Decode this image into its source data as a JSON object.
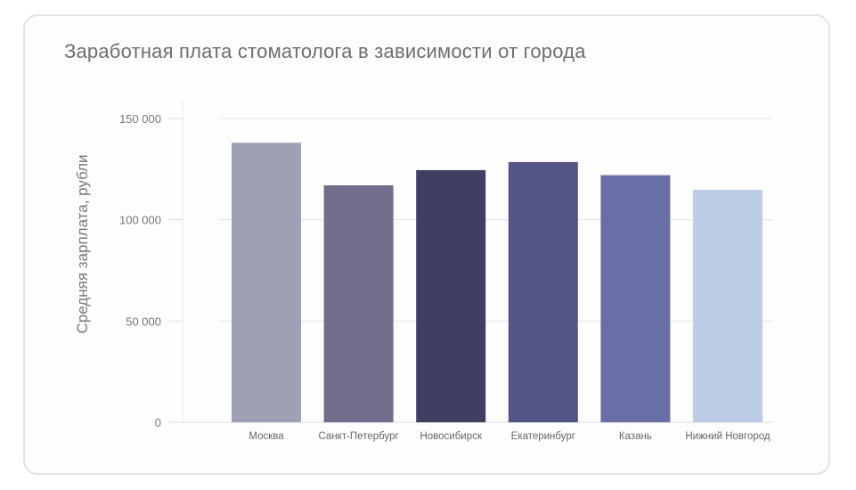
{
  "chart_data": {
    "type": "bar",
    "title": "Заработная плата стоматолога в зависимости от города",
    "xlabel": "",
    "ylabel": "Средняя зарплата, рубли",
    "ylim": [
      0,
      150000
    ],
    "yticks": [
      0,
      50000,
      100000,
      150000
    ],
    "ytick_labels": [
      "0",
      "50 000",
      "100 000",
      "150 000"
    ],
    "grid": true,
    "categories": [
      "Москва",
      "Санкт-Петербург",
      "Новосибирск",
      "Екатеринбург",
      "Казань",
      "Нижний Новгород"
    ],
    "values": [
      138000,
      117000,
      124500,
      128500,
      122000,
      114800
    ],
    "colors": [
      "#9ea0b3",
      "#716e8c",
      "#403f62",
      "#545587",
      "#686ea6",
      "#bccbe6"
    ]
  }
}
